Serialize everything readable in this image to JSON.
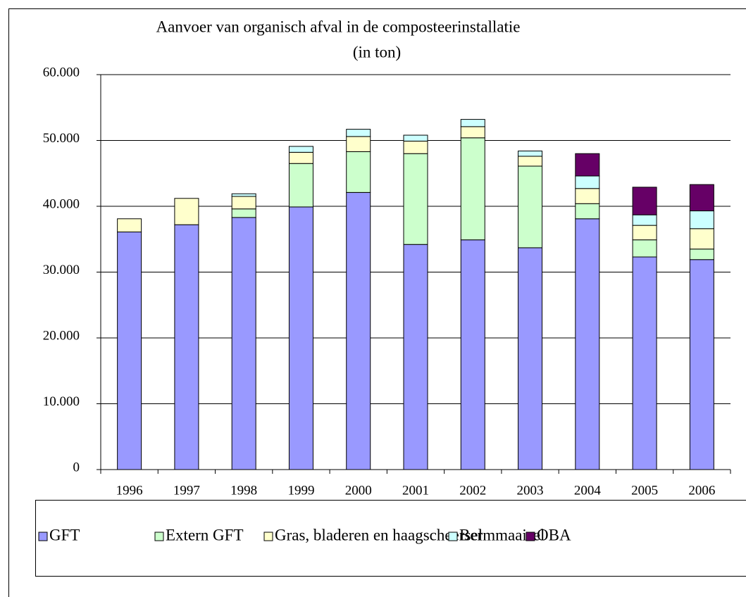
{
  "chart_data": {
    "type": "stacked_bar",
    "title": "Aanvoer van organisch afval in de composteerinstallatie",
    "subtitle": "(in ton)",
    "categories": [
      "1996",
      "1997",
      "1998",
      "1999",
      "2000",
      "2001",
      "2002",
      "2003",
      "2004",
      "2005",
      "2006"
    ],
    "series": [
      {
        "name": "GFT",
        "color": "#9999ff",
        "values": [
          36100,
          37200,
          38300,
          39900,
          42100,
          34200,
          34900,
          33700,
          38100,
          32300,
          31900
        ]
      },
      {
        "name": "Extern GFT",
        "color": "#ccffcc",
        "values": [
          0,
          0,
          1300,
          6600,
          6200,
          13800,
          15500,
          12400,
          2300,
          2600,
          1600
        ]
      },
      {
        "name": "Gras, bladeren en haagscheersel",
        "color": "#ffffcc",
        "values": [
          2000,
          4000,
          1900,
          1700,
          2300,
          1900,
          1700,
          1500,
          2300,
          2200,
          3100
        ]
      },
      {
        "name": "Bermmaaisel",
        "color": "#ccffff",
        "values": [
          0,
          0,
          400,
          900,
          1100,
          900,
          1100,
          800,
          1900,
          1600,
          2700
        ]
      },
      {
        "name": "OBA",
        "color": "#660066",
        "values": [
          0,
          0,
          0,
          0,
          0,
          0,
          0,
          0,
          3400,
          4200,
          4000
        ]
      }
    ],
    "ylim": [
      0,
      60000
    ],
    "yticks": [
      0,
      {
        "value": 10000,
        "label": "10.000"
      },
      {
        "value": 20000,
        "label": "20.000"
      },
      {
        "value": 30000,
        "label": "30.000"
      },
      {
        "value": 40000,
        "label": "40.000"
      },
      {
        "value": 50000,
        "label": "50.000"
      },
      {
        "value": 60000,
        "label": "60.000"
      }
    ],
    "grid": true
  }
}
